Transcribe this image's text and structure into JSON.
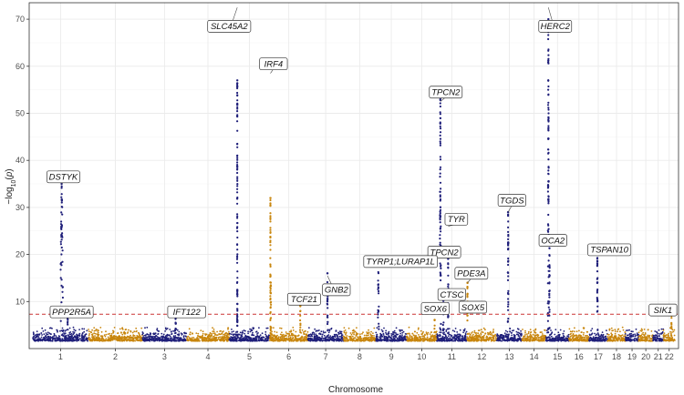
{
  "chart_data": {
    "type": "scatter",
    "subtype": "manhattan",
    "xlabel": "Chromosome",
    "ylabel": "-log10(p)",
    "ylim": [
      0,
      70
    ],
    "yticks": [
      10,
      20,
      30,
      40,
      50,
      60,
      70
    ],
    "grid": true,
    "significance_line": {
      "value": 7.3,
      "color": "#cc3333",
      "style": "dashed"
    },
    "colors": {
      "odd": "#1f1f7a",
      "even": "#c8860e"
    },
    "chromosomes": [
      {
        "label": "1",
        "length": 248
      },
      {
        "label": "2",
        "length": 242
      },
      {
        "label": "3",
        "length": 198
      },
      {
        "label": "4",
        "length": 190
      },
      {
        "label": "5",
        "length": 181
      },
      {
        "label": "6",
        "length": 171
      },
      {
        "label": "7",
        "length": 159
      },
      {
        "label": "8",
        "length": 145
      },
      {
        "label": "9",
        "length": 138
      },
      {
        "label": "10",
        "length": 134
      },
      {
        "label": "11",
        "length": 135
      },
      {
        "label": "12",
        "length": 133
      },
      {
        "label": "13",
        "length": 114
      },
      {
        "label": "14",
        "length": 107
      },
      {
        "label": "15",
        "length": 102
      },
      {
        "label": "16",
        "length": 90
      },
      {
        "label": "17",
        "length": 83
      },
      {
        "label": "18",
        "length": 80
      },
      {
        "label": "19",
        "length": 59
      },
      {
        "label": "20",
        "length": 64
      },
      {
        "label": "21",
        "length": 47
      },
      {
        "label": "22",
        "length": 51
      }
    ],
    "tick_labels": [
      "1",
      "2",
      "3",
      "4",
      "5",
      "6",
      "7",
      "8",
      "9",
      "10",
      "11",
      "12",
      "13",
      "14",
      "15",
      "16",
      "17",
      "18",
      "19",
      "20",
      "21",
      "22"
    ],
    "peaks": [
      {
        "chr": 1,
        "pos": 0.52,
        "height": 35,
        "width": 0.06
      },
      {
        "chr": 1,
        "pos": 0.63,
        "height": 8,
        "width": 0.02
      },
      {
        "chr": 3,
        "pos": 0.75,
        "height": 6.5,
        "width": 0.02
      },
      {
        "chr": 5,
        "pos": 0.2,
        "height": 57,
        "width": 0.01
      },
      {
        "chr": 5,
        "pos": 0.2,
        "height": 12.5,
        "width": 0.02
      },
      {
        "chr": 6,
        "pos": 0.02,
        "height": 32,
        "width": 0.012
      },
      {
        "chr": 6,
        "pos": 0.03,
        "height": 14,
        "width": 0.03
      },
      {
        "chr": 6,
        "pos": 0.8,
        "height": 10.5,
        "width": 0.02
      },
      {
        "chr": 7,
        "pos": 0.55,
        "height": 16,
        "width": 0.03
      },
      {
        "chr": 9,
        "pos": 0.08,
        "height": 18.5,
        "width": 0.05
      },
      {
        "chr": 10,
        "pos": 0.93,
        "height": 9,
        "width": 0.02
      },
      {
        "chr": 11,
        "pos": 0.12,
        "height": 53,
        "width": 0.05
      },
      {
        "chr": 11,
        "pos": 0.38,
        "height": 20.5,
        "width": 0.03
      },
      {
        "chr": 11,
        "pos": 0.22,
        "height": 12,
        "width": 0.03
      },
      {
        "chr": 12,
        "pos": 0.02,
        "height": 14,
        "width": 0.02
      },
      {
        "chr": 13,
        "pos": 0.45,
        "height": 29,
        "width": 0.03
      },
      {
        "chr": 15,
        "pos": 0.1,
        "height": 70,
        "width": 0.05
      },
      {
        "chr": 15,
        "pos": 0.15,
        "height": 24,
        "width": 0.03
      },
      {
        "chr": 17,
        "pos": 0.45,
        "height": 21,
        "width": 0.05
      },
      {
        "chr": 22,
        "pos": 0.7,
        "height": 7.5,
        "width": 0.03
      }
    ],
    "annotations": [
      {
        "gene": "SLC45A2",
        "chr": 5,
        "pos": 0.2,
        "y": 73,
        "label_chr": 5,
        "label_pos": 0.0,
        "label_y": 68.5
      },
      {
        "gene": "IRF4",
        "chr": 6,
        "pos": 0.02,
        "y": 58.5,
        "label_chr": 6,
        "label_pos": 0.1,
        "label_y": 60.5
      },
      {
        "gene": "HERC2",
        "chr": 15,
        "pos": 0.1,
        "y": 73,
        "label_chr": 15,
        "label_pos": 0.4,
        "label_y": 68.5
      },
      {
        "gene": "TPCN2",
        "chr": 11,
        "pos": 0.12,
        "y": 52.5,
        "label_chr": 11,
        "label_pos": 0.3,
        "label_y": 54.5
      },
      {
        "gene": "DSTYK",
        "chr": 1,
        "pos": 0.52,
        "y": 35,
        "label_chr": 1,
        "label_pos": 0.55,
        "label_y": 36.5
      },
      {
        "gene": "TGDS",
        "chr": 13,
        "pos": 0.45,
        "y": 29,
        "label_chr": 13,
        "label_pos": 0.6,
        "label_y": 31.5
      },
      {
        "gene": "TYR",
        "chr": 11,
        "pos": 0.38,
        "y": 26,
        "label_chr": 11,
        "label_pos": 0.65,
        "label_y": 27.5
      },
      {
        "gene": "OCA2",
        "chr": 15,
        "pos": 0.15,
        "y": 23.5,
        "label_chr": 15,
        "label_pos": 0.3,
        "label_y": 23.0
      },
      {
        "gene": "TSPAN10",
        "chr": 17,
        "pos": 0.45,
        "y": 21,
        "label_chr": 18,
        "label_pos": 0.1,
        "label_y": 21.0
      },
      {
        "gene": "TPCN2",
        "chr": 11,
        "pos": 0.25,
        "y": 20,
        "label_chr": 11,
        "label_pos": 0.25,
        "label_y": 20.5
      },
      {
        "gene": "TYRP1;LURAP1L",
        "chr": 9,
        "pos": 0.08,
        "y": 18.5,
        "label_chr": 9,
        "label_pos": 0.8,
        "label_y": 18.5
      },
      {
        "gene": "PDE3A",
        "chr": 12,
        "pos": 0.02,
        "y": 14,
        "label_chr": 12,
        "label_pos": 0.15,
        "label_y": 16.0
      },
      {
        "gene": "CTSC",
        "chr": 11,
        "pos": 0.4,
        "y": 12,
        "label_chr": 11,
        "label_pos": 0.5,
        "label_y": 11.5
      },
      {
        "gene": "GNB2",
        "chr": 7,
        "pos": 0.55,
        "y": 15.5,
        "label_chr": 7,
        "label_pos": 0.8,
        "label_y": 12.5
      },
      {
        "gene": "TCF21",
        "chr": 6,
        "pos": 0.8,
        "y": 10.5,
        "label_chr": 6,
        "label_pos": 0.9,
        "label_y": 10.5
      },
      {
        "gene": "SOX6",
        "chr": 10,
        "pos": 0.93,
        "y": 8.5,
        "label_chr": 10,
        "label_pos": 0.95,
        "label_y": 8.5
      },
      {
        "gene": "SOX5",
        "chr": 12,
        "pos": 0.02,
        "y": 8.5,
        "label_chr": 12,
        "label_pos": 0.2,
        "label_y": 8.8
      },
      {
        "gene": "PPP2R5A",
        "chr": 1,
        "pos": 0.63,
        "y": 8,
        "label_chr": 1,
        "label_pos": 0.7,
        "label_y": 7.8
      },
      {
        "gene": "IFT122",
        "chr": 3,
        "pos": 0.75,
        "y": 6.5,
        "label_chr": 4,
        "label_pos": 0.0,
        "label_y": 7.8
      },
      {
        "gene": "SIK1",
        "chr": 21,
        "pos": 0.7,
        "y": 7.5,
        "label_chr": 21,
        "label_pos": 0.95,
        "label_y": 8.2
      }
    ]
  }
}
